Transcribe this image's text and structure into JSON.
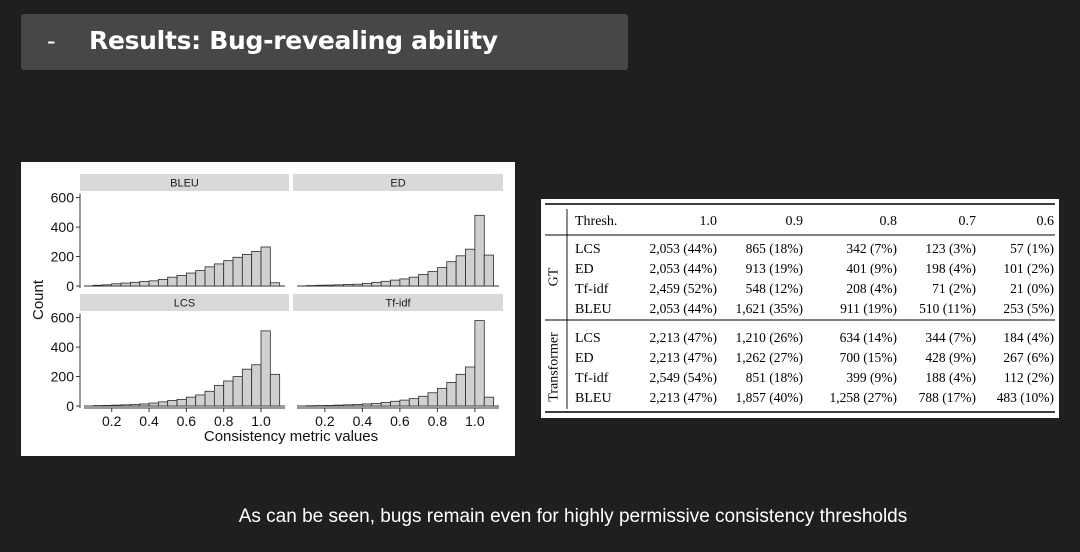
{
  "slide": {
    "bullet": "-",
    "title": "Results: Bug-revealing ability",
    "caption": "As can be seen, bugs remain even for highly permissive consistency thresholds"
  },
  "chart_data": {
    "type": "bar",
    "subtype": "faceted-histogram",
    "xlabel": "Consistency metric values",
    "ylabel": "Count",
    "xticks": [
      "0.2",
      "0.4",
      "0.6",
      "0.8",
      "1.0"
    ],
    "yticks": [
      "0",
      "200",
      "400",
      "600"
    ],
    "ylim": [
      0,
      600
    ],
    "bin_centers": [
      0.125,
      0.175,
      0.225,
      0.275,
      0.325,
      0.375,
      0.425,
      0.475,
      0.525,
      0.575,
      0.625,
      0.675,
      0.725,
      0.775,
      0.825,
      0.875,
      0.925,
      0.975,
      1.025,
      1.075
    ],
    "bin_width": 0.05,
    "facets": [
      {
        "name": "BLEU",
        "values": [
          5,
          8,
          15,
          20,
          25,
          30,
          35,
          45,
          60,
          72,
          88,
          105,
          130,
          150,
          172,
          195,
          215,
          235,
          265,
          22
        ]
      },
      {
        "name": "ED",
        "values": [
          3,
          5,
          6,
          8,
          10,
          12,
          18,
          25,
          32,
          40,
          48,
          60,
          78,
          98,
          125,
          165,
          205,
          250,
          480,
          210
        ]
      },
      {
        "name": "LCS",
        "values": [
          3,
          4,
          6,
          8,
          10,
          14,
          20,
          28,
          38,
          45,
          60,
          75,
          100,
          140,
          170,
          200,
          250,
          280,
          510,
          215
        ]
      },
      {
        "name": "Tf-idf",
        "values": [
          2,
          3,
          4,
          6,
          8,
          10,
          14,
          18,
          24,
          32,
          40,
          50,
          66,
          90,
          120,
          160,
          215,
          265,
          580,
          60
        ]
      }
    ]
  },
  "table": {
    "threshold_label": "Thresh.",
    "columns": [
      "1.0",
      "0.9",
      "0.8",
      "0.7",
      "0.6"
    ],
    "groups": [
      {
        "name": "GT",
        "rows": [
          {
            "metric": "LCS",
            "values": [
              "2,053 (44%)",
              "865 (18%)",
              "342 (7%)",
              "123 (3%)",
              "57 (1%)"
            ]
          },
          {
            "metric": "ED",
            "values": [
              "2,053 (44%)",
              "913 (19%)",
              "401 (9%)",
              "198 (4%)",
              "101 (2%)"
            ]
          },
          {
            "metric": "Tf-idf",
            "values": [
              "2,459 (52%)",
              "548 (12%)",
              "208 (4%)",
              "71 (2%)",
              "21 (0%)"
            ]
          },
          {
            "metric": "BLEU",
            "values": [
              "2,053 (44%)",
              "1,621 (35%)",
              "911 (19%)",
              "510 (11%)",
              "253 (5%)"
            ]
          }
        ]
      },
      {
        "name": "Transformer",
        "rows": [
          {
            "metric": "LCS",
            "values": [
              "2,213 (47%)",
              "1,210 (26%)",
              "634 (14%)",
              "344 (7%)",
              "184 (4%)"
            ]
          },
          {
            "metric": "ED",
            "values": [
              "2,213 (47%)",
              "1,262 (27%)",
              "700 (15%)",
              "428 (9%)",
              "267 (6%)"
            ]
          },
          {
            "metric": "Tf-idf",
            "values": [
              "2,549 (54%)",
              "851 (18%)",
              "399 (9%)",
              "188 (4%)",
              "112 (2%)"
            ]
          },
          {
            "metric": "BLEU",
            "values": [
              "2,213 (47%)",
              "1,857 (40%)",
              "1,258 (27%)",
              "788 (17%)",
              "483 (10%)"
            ]
          }
        ]
      }
    ]
  }
}
